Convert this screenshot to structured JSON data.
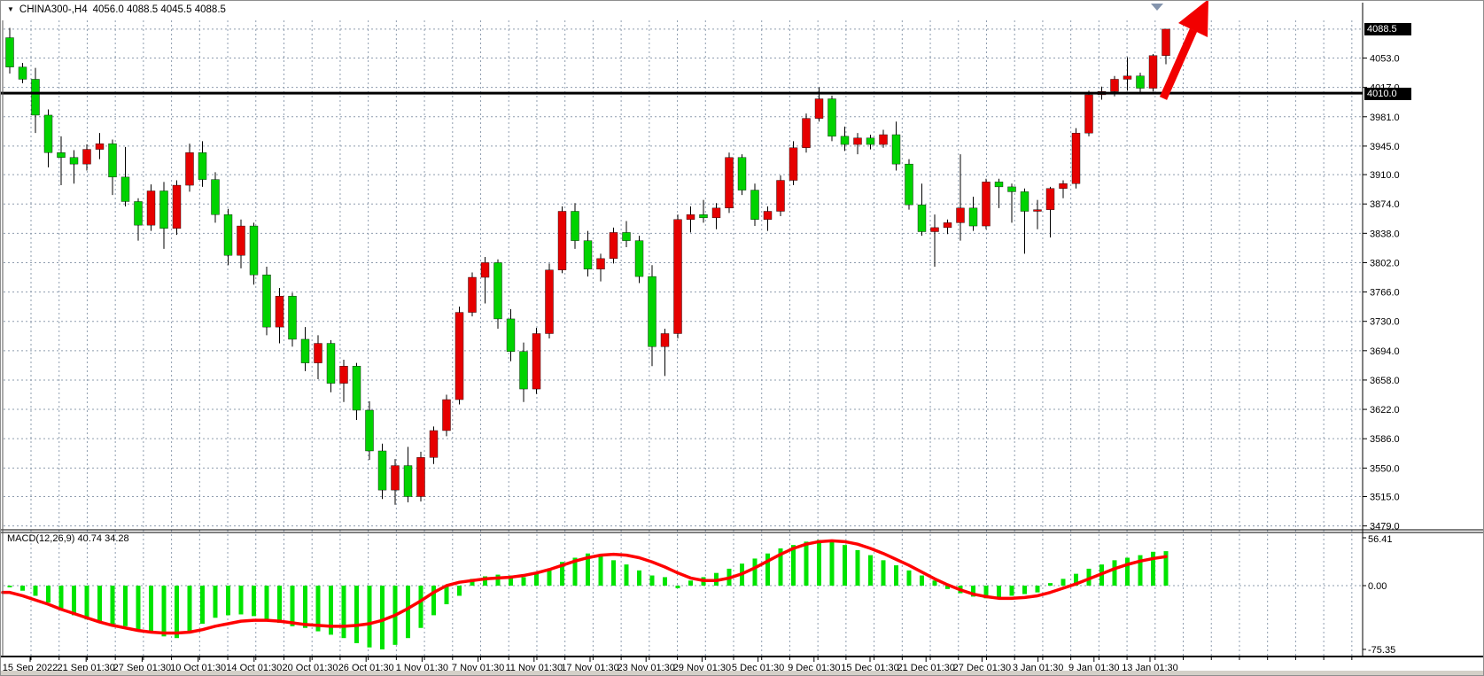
{
  "header": {
    "symbol_period": "CHINA300-,H4",
    "ohlc": "4056.0 4088.5 4045.5 4088.5"
  },
  "chart_data": {
    "type": "candlestick",
    "symbol": "CHINA300-",
    "timeframe": "H4",
    "last_bar": {
      "open": 4056.0,
      "high": 4088.5,
      "low": 4045.5,
      "close": 4088.5
    },
    "price_axis": {
      "current_badge": "4088.5",
      "hline_badge": "4010.0",
      "top_gridline_value": 4088.5,
      "tick_labels": [
        "4053.0",
        "4017.0",
        "3981.0",
        "3945.0",
        "3910.0",
        "3874.0",
        "3838.0",
        "3802.0",
        "3766.0",
        "3730.0",
        "3694.0",
        "3658.0",
        "3622.0",
        "3586.0",
        "3550.0",
        "3515.0",
        "3479.0"
      ]
    },
    "hline_value": 4010.0,
    "x_labels": [
      "15 Sep 2022",
      "21 Sep 01:30",
      "27 Sep 01:30",
      "10 Oct 01:30",
      "14 Oct 01:30",
      "20 Oct 01:30",
      "26 Oct 01:30",
      "1 Nov 01:30",
      "7 Nov 01:30",
      "11 Nov 01:30",
      "17 Nov 01:30",
      "23 Nov 01:30",
      "29 Nov 01:30",
      "5 Dec 01:30",
      "9 Dec 01:30",
      "15 Dec 01:30",
      "21 Dec 01:30",
      "27 Dec 01:30",
      "3 Jan 01:30",
      "9 Jan 01:30",
      "13 Jan 01:30"
    ],
    "candles": [
      [
        4078,
        4090,
        4034,
        4042
      ],
      [
        4042,
        4047,
        4022,
        4027
      ],
      [
        4027,
        4041,
        3961,
        3983
      ],
      [
        3983,
        3990,
        3919,
        3937
      ],
      [
        3937,
        3957,
        3897,
        3931
      ],
      [
        3931,
        3940,
        3899,
        3923
      ],
      [
        3923,
        3947,
        3915,
        3941
      ],
      [
        3941,
        3961,
        3929,
        3948
      ],
      [
        3948,
        3953,
        3885,
        3907
      ],
      [
        3907,
        3944,
        3871,
        3877
      ],
      [
        3877,
        3881,
        3829,
        3848
      ],
      [
        3848,
        3898,
        3841,
        3890
      ],
      [
        3890,
        3901,
        3819,
        3844
      ],
      [
        3844,
        3903,
        3836,
        3897
      ],
      [
        3897,
        3948,
        3889,
        3937
      ],
      [
        3937,
        3951,
        3895,
        3904
      ],
      [
        3904,
        3913,
        3851,
        3861
      ],
      [
        3861,
        3868,
        3799,
        3811
      ],
      [
        3811,
        3855,
        3795,
        3847
      ],
      [
        3847,
        3851,
        3775,
        3787
      ],
      [
        3787,
        3797,
        3713,
        3723
      ],
      [
        3723,
        3771,
        3703,
        3761
      ],
      [
        3761,
        3765,
        3699,
        3708
      ],
      [
        3708,
        3723,
        3669,
        3679
      ],
      [
        3679,
        3713,
        3659,
        3703
      ],
      [
        3703,
        3707,
        3643,
        3654
      ],
      [
        3654,
        3683,
        3631,
        3675
      ],
      [
        3675,
        3679,
        3609,
        3621
      ],
      [
        3621,
        3632,
        3560,
        3571
      ],
      [
        3571,
        3580,
        3512,
        3523
      ],
      [
        3523,
        3561,
        3505,
        3553
      ],
      [
        3553,
        3576,
        3508,
        3515
      ],
      [
        3515,
        3570,
        3509,
        3563
      ],
      [
        3563,
        3601,
        3555,
        3596
      ],
      [
        3596,
        3640,
        3589,
        3634
      ],
      [
        3634,
        3748,
        3628,
        3741
      ],
      [
        3741,
        3790,
        3736,
        3784
      ],
      [
        3784,
        3809,
        3752,
        3802
      ],
      [
        3802,
        3806,
        3721,
        3733
      ],
      [
        3733,
        3745,
        3681,
        3693
      ],
      [
        3693,
        3704,
        3631,
        3647
      ],
      [
        3647,
        3722,
        3641,
        3715
      ],
      [
        3715,
        3801,
        3709,
        3793
      ],
      [
        3793,
        3871,
        3789,
        3865
      ],
      [
        3865,
        3875,
        3819,
        3829
      ],
      [
        3829,
        3841,
        3785,
        3794
      ],
      [
        3794,
        3813,
        3779,
        3807
      ],
      [
        3807,
        3845,
        3801,
        3839
      ],
      [
        3839,
        3853,
        3821,
        3829
      ],
      [
        3829,
        3835,
        3777,
        3785
      ],
      [
        3785,
        3799,
        3675,
        3699
      ],
      [
        3699,
        3721,
        3663,
        3715
      ],
      [
        3715,
        3861,
        3709,
        3855
      ],
      [
        3855,
        3871,
        3839,
        3861
      ],
      [
        3861,
        3879,
        3851,
        3857
      ],
      [
        3857,
        3875,
        3843,
        3869
      ],
      [
        3869,
        3937,
        3863,
        3931
      ],
      [
        3931,
        3935,
        3885,
        3891
      ],
      [
        3891,
        3899,
        3847,
        3855
      ],
      [
        3855,
        3871,
        3841,
        3865
      ],
      [
        3865,
        3909,
        3859,
        3903
      ],
      [
        3903,
        3951,
        3897,
        3943
      ],
      [
        3943,
        3985,
        3937,
        3979
      ],
      [
        3979,
        4017,
        3975,
        4003
      ],
      [
        4003,
        4007,
        3951,
        3957
      ],
      [
        3957,
        3969,
        3939,
        3947
      ],
      [
        3947,
        3961,
        3935,
        3955
      ],
      [
        3955,
        3959,
        3941,
        3947
      ],
      [
        3947,
        3965,
        3943,
        3959
      ],
      [
        3959,
        3975,
        3915,
        3923
      ],
      [
        3923,
        3929,
        3867,
        3873
      ],
      [
        3873,
        3899,
        3835,
        3840
      ],
      [
        3840,
        3861,
        3797,
        3845
      ],
      [
        3845,
        3855,
        3837,
        3851
      ],
      [
        3851,
        3935,
        3829,
        3869
      ],
      [
        3869,
        3883,
        3841,
        3847
      ],
      [
        3847,
        3905,
        3843,
        3901
      ],
      [
        3901,
        3905,
        3869,
        3895
      ],
      [
        3895,
        3899,
        3851,
        3889
      ],
      [
        3889,
        3893,
        3813,
        3865
      ],
      [
        3865,
        3879,
        3843,
        3867
      ],
      [
        3867,
        3895,
        3833,
        3893
      ],
      [
        3893,
        3903,
        3881,
        3899
      ],
      [
        3899,
        3967,
        3893,
        3961
      ],
      [
        3961,
        4013,
        3957,
        4008
      ],
      [
        4008,
        4018,
        4002,
        4012
      ],
      [
        4012,
        4031,
        4006,
        4027
      ],
      [
        4027,
        4054,
        4013,
        4031
      ],
      [
        4031,
        4035,
        4009,
        4016
      ],
      [
        4016,
        4058,
        4012,
        4056
      ],
      [
        4056,
        4088.5,
        4045.5,
        4088.5
      ]
    ],
    "macd": {
      "label": "MACD(12,26,9)",
      "macd_value": "40.74",
      "signal_value": "34.28",
      "axis_labels": [
        "56.41",
        "0.00",
        "-75.35"
      ],
      "axis_values": [
        56.41,
        0.0,
        -75.35
      ],
      "histogram": [
        -2,
        -6,
        -12,
        -20,
        -28,
        -35,
        -40,
        -44,
        -46,
        -48,
        -52,
        -56,
        -60,
        -62,
        -55,
        -45,
        -38,
        -35,
        -34,
        -36,
        -40,
        -44,
        -48,
        -50,
        -54,
        -58,
        -62,
        -68,
        -73,
        -75.35,
        -70,
        -62,
        -50,
        -35,
        -22,
        -12,
        8,
        11,
        13,
        12,
        10,
        14,
        20,
        28,
        33,
        38,
        35,
        30,
        25,
        18,
        12,
        10,
        -3,
        6,
        10,
        15,
        20,
        26,
        32,
        38,
        44,
        48,
        52,
        54,
        52,
        48,
        42,
        36,
        30,
        24,
        18,
        12,
        6,
        -4,
        -9,
        -13,
        -15,
        -14,
        -12,
        -10,
        -8,
        3,
        8,
        14,
        20,
        25,
        30,
        33,
        36,
        40,
        40.74
      ],
      "signal": [
        -8,
        -12,
        -17,
        -22,
        -28,
        -33,
        -38,
        -43,
        -47,
        -50,
        -53,
        -55,
        -56,
        -56,
        -55,
        -52,
        -48,
        -45,
        -42,
        -41,
        -41,
        -42,
        -44,
        -46,
        -47,
        -48,
        -48,
        -47,
        -45,
        -41,
        -35,
        -27,
        -18,
        -8,
        0,
        4,
        6,
        8,
        9,
        10,
        12,
        15,
        19,
        24,
        29,
        33,
        36,
        37,
        36,
        33,
        28,
        22,
        15,
        9,
        6,
        6,
        9,
        14,
        21,
        29,
        37,
        44,
        49,
        52,
        53,
        52,
        49,
        44,
        38,
        31,
        24,
        16,
        8,
        1,
        -5,
        -10,
        -13,
        -15,
        -15,
        -14,
        -12,
        -8,
        -3,
        2,
        8,
        14,
        20,
        25,
        29,
        32,
        34.28
      ]
    },
    "colors": {
      "bull_candle": "#e60000",
      "bear_candle": "#00d300",
      "macd_histogram": "#00e400",
      "macd_signal": "#ff0000",
      "grid": "#8e9cae",
      "hline": "#000000",
      "arrow": "#f20000"
    },
    "annotations": [
      {
        "type": "arrow",
        "direction": "up-right"
      }
    ]
  }
}
